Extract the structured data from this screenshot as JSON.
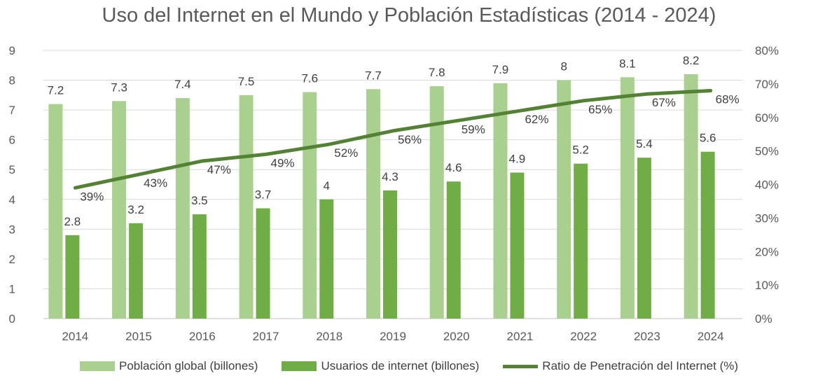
{
  "chart_data": {
    "type": "bar",
    "title": "Uso del Internet en el Mundo y Población Estadísticas (2014 - 2024)",
    "xlabel": "",
    "ylabel": "",
    "categories": [
      "2014",
      "2015",
      "2016",
      "2017",
      "2018",
      "2019",
      "2020",
      "2021",
      "2022",
      "2023",
      "2024"
    ],
    "series": [
      {
        "name": "Población global (billones)",
        "kind": "bar",
        "axis": "left",
        "color": "#a9d08e",
        "values": [
          7.2,
          7.3,
          7.4,
          7.5,
          7.6,
          7.7,
          7.8,
          7.9,
          8,
          8.1,
          8.2
        ],
        "labels": [
          "7.2",
          "7.3",
          "7.4",
          "7.5",
          "7.6",
          "7.7",
          "7.8",
          "7.9",
          "8",
          "8.1",
          "8.2"
        ]
      },
      {
        "name": "Usuarios de internet (billones)",
        "kind": "bar",
        "axis": "left",
        "color": "#70ad47",
        "values": [
          2.8,
          3.2,
          3.5,
          3.7,
          4,
          4.3,
          4.6,
          4.9,
          5.2,
          5.4,
          5.6
        ],
        "labels": [
          "2.8",
          "3.2",
          "3.5",
          "3.7",
          "4",
          "4.3",
          "4.6",
          "4.9",
          "5.2",
          "5.4",
          "5.6"
        ]
      },
      {
        "name": "Ratio de Penetración del Internet (%)",
        "kind": "line",
        "axis": "right",
        "color": "#548235",
        "values": [
          39,
          43,
          47,
          49,
          52,
          56,
          59,
          62,
          65,
          67,
          68
        ],
        "labels": [
          "39%",
          "43%",
          "47%",
          "49%",
          "52%",
          "56%",
          "59%",
          "62%",
          "65%",
          "67%",
          "68%"
        ]
      }
    ],
    "ylim": [
      0,
      9
    ],
    "yticks": [
      "0",
      "1",
      "2",
      "3",
      "4",
      "5",
      "6",
      "7",
      "8",
      "9"
    ],
    "y2lim": [
      0,
      80
    ],
    "y2ticks": [
      "0%",
      "10%",
      "20%",
      "30%",
      "40%",
      "50%",
      "60%",
      "70%",
      "80%"
    ],
    "grid": true,
    "legend_position": "bottom"
  }
}
